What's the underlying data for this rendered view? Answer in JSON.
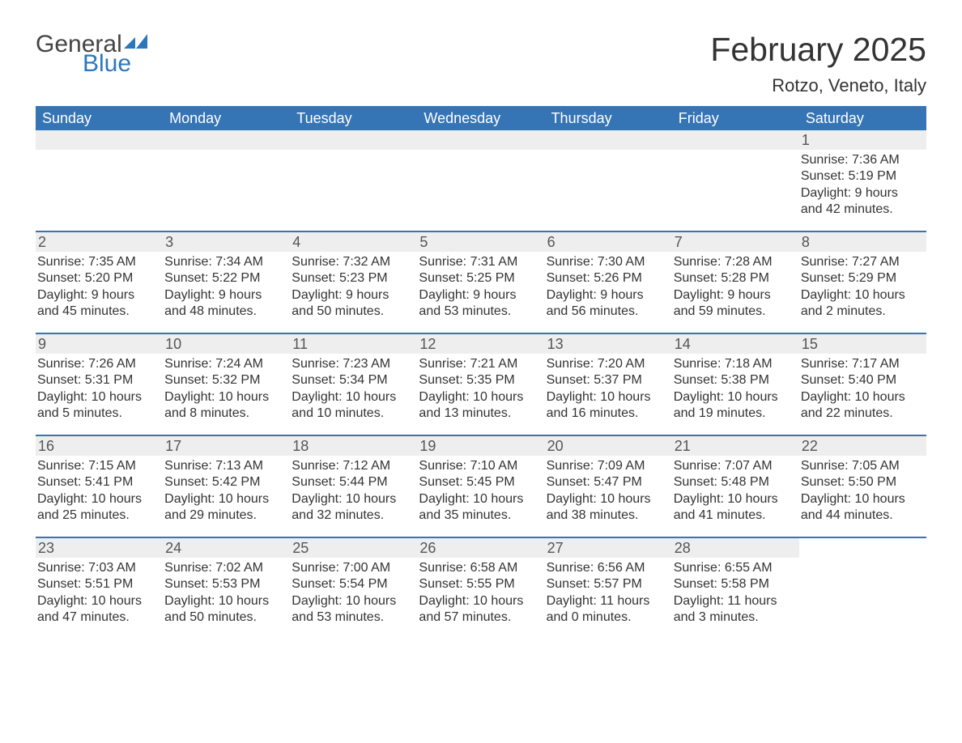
{
  "logo": {
    "text1": "General",
    "text2": "Blue",
    "accent_color": "#2c77bb",
    "text_color": "#444444"
  },
  "header": {
    "month_title": "February 2025",
    "location": "Rotzo, Veneto, Italy"
  },
  "calendar": {
    "header_bg": "#3574b5",
    "header_text_color": "#ffffff",
    "row_sep_color": "#3574b5",
    "day_num_bg": "#eeeeee",
    "text_color": "#333333",
    "days_of_week": [
      "Sunday",
      "Monday",
      "Tuesday",
      "Wednesday",
      "Thursday",
      "Friday",
      "Saturday"
    ],
    "weeks": [
      [
        null,
        null,
        null,
        null,
        null,
        null,
        {
          "n": "1",
          "sunrise": "7:36 AM",
          "sunset": "5:19 PM",
          "daylight": "9 hours and 42 minutes."
        }
      ],
      [
        {
          "n": "2",
          "sunrise": "7:35 AM",
          "sunset": "5:20 PM",
          "daylight": "9 hours and 45 minutes."
        },
        {
          "n": "3",
          "sunrise": "7:34 AM",
          "sunset": "5:22 PM",
          "daylight": "9 hours and 48 minutes."
        },
        {
          "n": "4",
          "sunrise": "7:32 AM",
          "sunset": "5:23 PM",
          "daylight": "9 hours and 50 minutes."
        },
        {
          "n": "5",
          "sunrise": "7:31 AM",
          "sunset": "5:25 PM",
          "daylight": "9 hours and 53 minutes."
        },
        {
          "n": "6",
          "sunrise": "7:30 AM",
          "sunset": "5:26 PM",
          "daylight": "9 hours and 56 minutes."
        },
        {
          "n": "7",
          "sunrise": "7:28 AM",
          "sunset": "5:28 PM",
          "daylight": "9 hours and 59 minutes."
        },
        {
          "n": "8",
          "sunrise": "7:27 AM",
          "sunset": "5:29 PM",
          "daylight": "10 hours and 2 minutes."
        }
      ],
      [
        {
          "n": "9",
          "sunrise": "7:26 AM",
          "sunset": "5:31 PM",
          "daylight": "10 hours and 5 minutes."
        },
        {
          "n": "10",
          "sunrise": "7:24 AM",
          "sunset": "5:32 PM",
          "daylight": "10 hours and 8 minutes."
        },
        {
          "n": "11",
          "sunrise": "7:23 AM",
          "sunset": "5:34 PM",
          "daylight": "10 hours and 10 minutes."
        },
        {
          "n": "12",
          "sunrise": "7:21 AM",
          "sunset": "5:35 PM",
          "daylight": "10 hours and 13 minutes."
        },
        {
          "n": "13",
          "sunrise": "7:20 AM",
          "sunset": "5:37 PM",
          "daylight": "10 hours and 16 minutes."
        },
        {
          "n": "14",
          "sunrise": "7:18 AM",
          "sunset": "5:38 PM",
          "daylight": "10 hours and 19 minutes."
        },
        {
          "n": "15",
          "sunrise": "7:17 AM",
          "sunset": "5:40 PM",
          "daylight": "10 hours and 22 minutes."
        }
      ],
      [
        {
          "n": "16",
          "sunrise": "7:15 AM",
          "sunset": "5:41 PM",
          "daylight": "10 hours and 25 minutes."
        },
        {
          "n": "17",
          "sunrise": "7:13 AM",
          "sunset": "5:42 PM",
          "daylight": "10 hours and 29 minutes."
        },
        {
          "n": "18",
          "sunrise": "7:12 AM",
          "sunset": "5:44 PM",
          "daylight": "10 hours and 32 minutes."
        },
        {
          "n": "19",
          "sunrise": "7:10 AM",
          "sunset": "5:45 PM",
          "daylight": "10 hours and 35 minutes."
        },
        {
          "n": "20",
          "sunrise": "7:09 AM",
          "sunset": "5:47 PM",
          "daylight": "10 hours and 38 minutes."
        },
        {
          "n": "21",
          "sunrise": "7:07 AM",
          "sunset": "5:48 PM",
          "daylight": "10 hours and 41 minutes."
        },
        {
          "n": "22",
          "sunrise": "7:05 AM",
          "sunset": "5:50 PM",
          "daylight": "10 hours and 44 minutes."
        }
      ],
      [
        {
          "n": "23",
          "sunrise": "7:03 AM",
          "sunset": "5:51 PM",
          "daylight": "10 hours and 47 minutes."
        },
        {
          "n": "24",
          "sunrise": "7:02 AM",
          "sunset": "5:53 PM",
          "daylight": "10 hours and 50 minutes."
        },
        {
          "n": "25",
          "sunrise": "7:00 AM",
          "sunset": "5:54 PM",
          "daylight": "10 hours and 53 minutes."
        },
        {
          "n": "26",
          "sunrise": "6:58 AM",
          "sunset": "5:55 PM",
          "daylight": "10 hours and 57 minutes."
        },
        {
          "n": "27",
          "sunrise": "6:56 AM",
          "sunset": "5:57 PM",
          "daylight": "11 hours and 0 minutes."
        },
        {
          "n": "28",
          "sunrise": "6:55 AM",
          "sunset": "5:58 PM",
          "daylight": "11 hours and 3 minutes."
        },
        null
      ]
    ],
    "labels": {
      "sunrise": "Sunrise:",
      "sunset": "Sunset:",
      "daylight": "Daylight:"
    }
  }
}
